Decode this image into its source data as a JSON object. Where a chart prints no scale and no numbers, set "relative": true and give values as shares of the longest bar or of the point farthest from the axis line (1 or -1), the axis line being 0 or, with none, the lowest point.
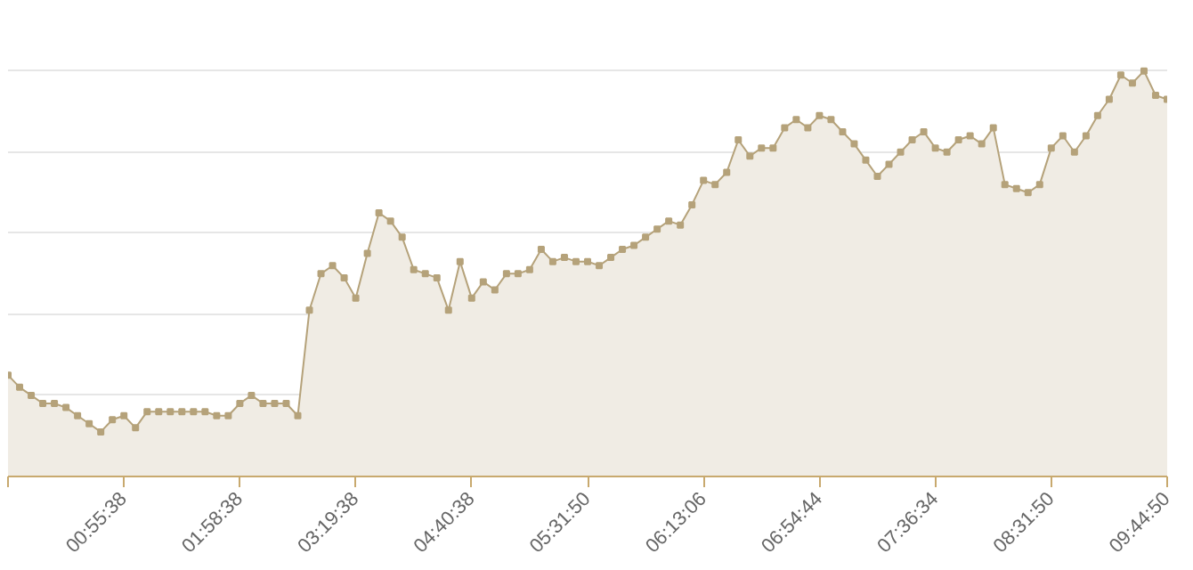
{
  "chart_data": {
    "type": "area",
    "relative": true,
    "grid": "y",
    "marker": "square",
    "line_style": "solid",
    "categories": [
      null,
      null,
      null,
      null,
      null,
      null,
      null,
      null,
      null,
      null,
      "00:55:38",
      null,
      null,
      null,
      null,
      null,
      null,
      null,
      null,
      null,
      "01:58:38",
      null,
      null,
      null,
      null,
      null,
      null,
      null,
      null,
      null,
      "03:19:38",
      null,
      null,
      null,
      null,
      null,
      null,
      null,
      null,
      null,
      "04:40:38",
      null,
      null,
      null,
      null,
      null,
      null,
      null,
      null,
      null,
      "05:31:50",
      null,
      null,
      null,
      null,
      null,
      null,
      null,
      null,
      null,
      "06:13:06",
      null,
      null,
      null,
      null,
      null,
      null,
      null,
      null,
      null,
      "06:54:44",
      null,
      null,
      null,
      null,
      null,
      null,
      null,
      null,
      null,
      "07:36:34",
      null,
      null,
      null,
      null,
      null,
      null,
      null,
      null,
      null,
      "08:31:50",
      null,
      null,
      null,
      null,
      null,
      null,
      null,
      null,
      null,
      "09:44:50"
    ],
    "series": [
      {
        "color": "#b5a27a",
        "values": [
          0.25,
          0.22,
          0.2,
          0.18,
          0.18,
          0.17,
          0.15,
          0.13,
          0.11,
          0.14,
          0.15,
          0.12,
          0.16,
          0.16,
          0.16,
          0.16,
          0.16,
          0.16,
          0.15,
          0.15,
          0.18,
          0.2,
          0.18,
          0.18,
          0.18,
          0.15,
          0.41,
          0.5,
          0.52,
          0.49,
          0.44,
          0.55,
          0.65,
          0.63,
          0.59,
          0.51,
          0.5,
          0.49,
          0.41,
          0.53,
          0.44,
          0.48,
          0.46,
          0.5,
          0.5,
          0.51,
          0.56,
          0.53,
          0.54,
          0.53,
          0.53,
          0.52,
          0.54,
          0.56,
          0.57,
          0.59,
          0.61,
          0.63,
          0.62,
          0.67,
          0.73,
          0.72,
          0.75,
          0.83,
          0.79,
          0.81,
          0.81,
          0.86,
          0.88,
          0.86,
          0.89,
          0.88,
          0.85,
          0.82,
          0.78,
          0.74,
          0.77,
          0.8,
          0.83,
          0.85,
          0.81,
          0.8,
          0.83,
          0.84,
          0.82,
          0.86,
          0.72,
          0.71,
          0.7,
          0.72,
          0.81,
          0.84,
          0.8,
          0.84,
          0.89,
          0.93,
          0.99,
          0.97,
          1,
          0.94,
          0.93
        ]
      }
    ]
  }
}
